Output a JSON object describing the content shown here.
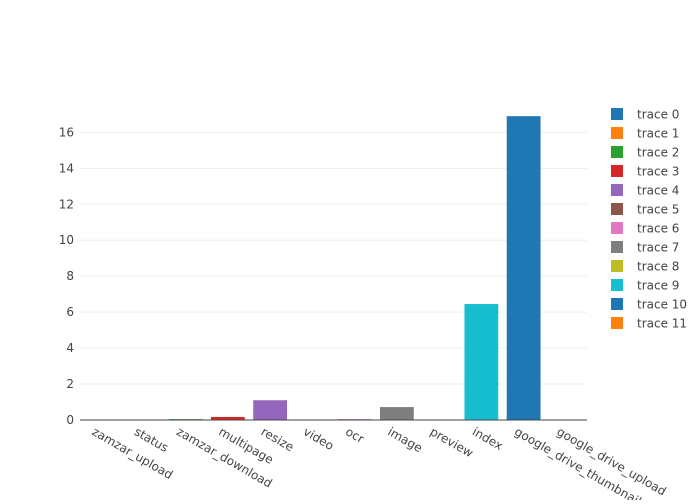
{
  "chart_data": {
    "type": "bar",
    "categories": [
      "zamzar_upload",
      "status",
      "zamzar_download",
      "multipage",
      "resize",
      "video",
      "ocr",
      "image",
      "preview",
      "index",
      "google_drive_thumbnail",
      "google_drive_upload"
    ],
    "series": [
      {
        "name": "trace 0",
        "category": "zamzar_upload",
        "value": 0.02,
        "color": "#1f77b4"
      },
      {
        "name": "trace 1",
        "category": "status",
        "value": 0.02,
        "color": "#ff7f0e"
      },
      {
        "name": "trace 2",
        "category": "zamzar_download",
        "value": 0.05,
        "color": "#2ca02c"
      },
      {
        "name": "trace 3",
        "category": "multipage",
        "value": 0.17,
        "color": "#d62728"
      },
      {
        "name": "trace 4",
        "category": "resize",
        "value": 1.1,
        "color": "#9467bd"
      },
      {
        "name": "trace 5",
        "category": "video",
        "value": 0.02,
        "color": "#8c564b"
      },
      {
        "name": "trace 6",
        "category": "ocr",
        "value": 0.05,
        "color": "#e377c2"
      },
      {
        "name": "trace 7",
        "category": "image",
        "value": 0.72,
        "color": "#7f7f7f"
      },
      {
        "name": "trace 8",
        "category": "preview",
        "value": 0.02,
        "color": "#bcbd22"
      },
      {
        "name": "trace 9",
        "category": "index",
        "value": 6.45,
        "color": "#17becf"
      },
      {
        "name": "trace 10",
        "category": "google_drive_thumbnail",
        "value": 16.9,
        "color": "#1f77b4"
      },
      {
        "name": "trace 11",
        "category": "google_drive_upload",
        "value": 0.02,
        "color": "#ff7f0e"
      }
    ],
    "yticks": [
      0,
      2,
      4,
      6,
      8,
      10,
      12,
      14,
      16
    ],
    "ylim": [
      0,
      17.8
    ],
    "grid": true,
    "legend_position": "right",
    "title": "",
    "xlabel": "",
    "ylabel": ""
  }
}
